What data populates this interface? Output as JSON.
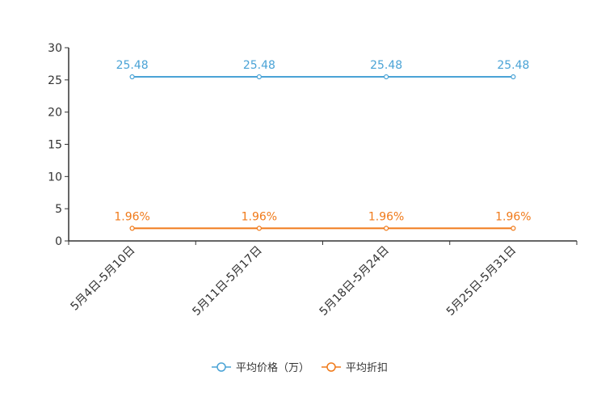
{
  "chart_data": {
    "type": "line",
    "title": "",
    "xlabel": "",
    "ylabel": "",
    "ylim": [
      0,
      30
    ],
    "yticks": [
      0,
      5,
      10,
      15,
      20,
      25,
      30
    ],
    "grid": false,
    "legend_position": "bottom",
    "categories": [
      "5月4日-5月10日",
      "5月11日-5月17日",
      "5月18日-5月24日",
      "5月25日-5月31日"
    ],
    "series": [
      {
        "name": "平均价格（万）",
        "color": "#4aa3d6",
        "values": [
          25.48,
          25.48,
          25.48,
          25.48
        ],
        "labels": [
          "25.48",
          "25.48",
          "25.48",
          "25.48"
        ]
      },
      {
        "name": "平均折扣",
        "color": "#f07a1a",
        "values": [
          1.96,
          1.96,
          1.96,
          1.96
        ],
        "labels": [
          "1.96%",
          "1.96%",
          "1.96%",
          "1.96%"
        ]
      }
    ]
  }
}
